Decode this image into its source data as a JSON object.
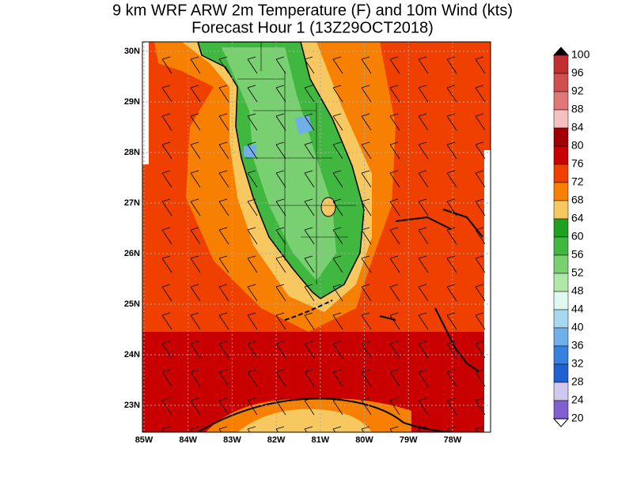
{
  "header": {
    "title": "9 km WRF ARW 2m Temperature (F) and 10m Wind (kts)",
    "subtitle": "Forecast Hour 1 (13Z29OCT2018)"
  },
  "map": {
    "longitude_labels": [
      "85W",
      "84W",
      "83W",
      "82W",
      "81W",
      "80W",
      "79W",
      "78W"
    ],
    "latitude_labels": [
      "30N",
      "29N",
      "28N",
      "27N",
      "26N",
      "25N",
      "24N",
      "23N"
    ]
  },
  "colorbar": {
    "labels": [
      100,
      96,
      92,
      88,
      84,
      80,
      76,
      72,
      68,
      64,
      60,
      56,
      52,
      48,
      44,
      40,
      36,
      32,
      28,
      24,
      20
    ],
    "colors": [
      "#c03030",
      "#d05050",
      "#e07878",
      "#f4c0c0",
      "#a00000",
      "#c80000",
      "#f04000",
      "#f88000",
      "#f8c860",
      "#20a020",
      "#40b840",
      "#78d070",
      "#b0e8a8",
      "#e0f8f0",
      "#a8d8f0",
      "#70b0e8",
      "#3880e0",
      "#2060d0",
      "#d0c8f0",
      "#8060d0"
    ]
  }
}
